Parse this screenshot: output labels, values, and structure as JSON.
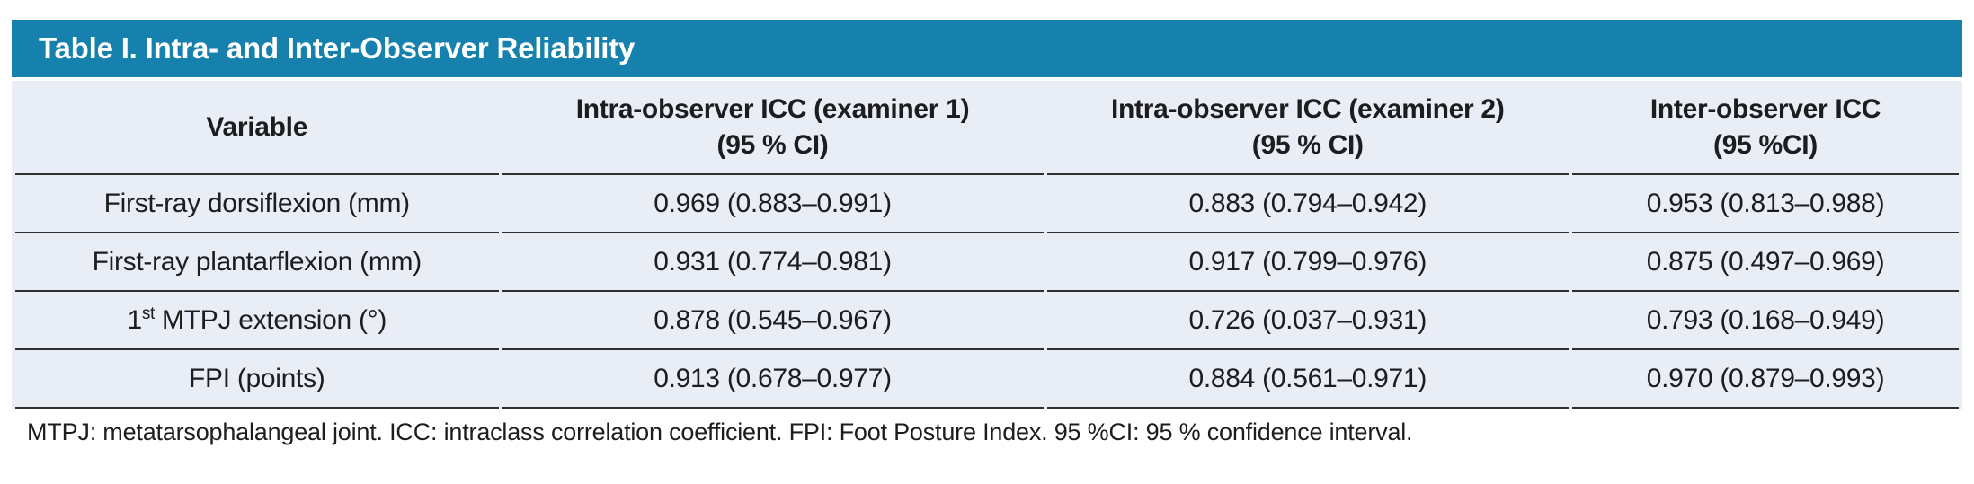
{
  "colors": {
    "title_bar_bg": "#1681ad",
    "title_text": "#ffffff",
    "body_bg": "#e9edf6",
    "divider": "#2f2f2f",
    "text": "#1d1d1f"
  },
  "table": {
    "title": "Table I. Intra- and Inter-Observer Reliability",
    "columns": [
      {
        "label": "Variable",
        "sub": ""
      },
      {
        "label": "Intra-observer ICC (examiner 1)",
        "sub": "(95 % CI)"
      },
      {
        "label": "Intra-observer ICC (examiner 2)",
        "sub": "(95 % CI)"
      },
      {
        "label": "Inter-observer ICC",
        "sub": "(95 %CI)"
      }
    ],
    "rows": [
      {
        "variable": {
          "pre": "First-ray dorsiflexion (mm)",
          "sup": "",
          "post": ""
        },
        "values": [
          "0.969 (0.883–0.991)",
          "0.883 (0.794–0.942)",
          "0.953 (0.813–0.988)"
        ]
      },
      {
        "variable": {
          "pre": "First-ray plantarflexion (mm)",
          "sup": "",
          "post": ""
        },
        "values": [
          "0.931 (0.774–0.981)",
          "0.917 (0.799–0.976)",
          "0.875 (0.497–0.969)"
        ]
      },
      {
        "variable": {
          "pre": "1",
          "sup": "st",
          "post": " MTPJ extension (°)"
        },
        "values": [
          "0.878 (0.545–0.967)",
          "0.726 (0.037–0.931)",
          "0.793 (0.168–0.949)"
        ]
      },
      {
        "variable": {
          "pre": "FPI (points)",
          "sup": "",
          "post": ""
        },
        "values": [
          "0.913 (0.678–0.977)",
          "0.884 (0.561–0.971)",
          "0.970 (0.879–0.993)"
        ]
      }
    ],
    "footnote": "MTPJ: metatarsophalangeal joint. ICC: intraclass correlation coefficient. FPI: Foot Posture Index. 95 %CI: 95 % confidence interval."
  },
  "chart_data": {
    "type": "table",
    "title": "Table I. Intra- and Inter-Observer Reliability",
    "columns": [
      "Variable",
      "Intra-observer ICC (examiner 1) (95 % CI)",
      "Intra-observer ICC (examiner 2) (95 % CI)",
      "Inter-observer ICC (95 %CI)"
    ],
    "rows": [
      [
        "First-ray dorsiflexion (mm)",
        "0.969 (0.883–0.991)",
        "0.883 (0.794–0.942)",
        "0.953 (0.813–0.988)"
      ],
      [
        "First-ray plantarflexion (mm)",
        "0.931 (0.774–0.981)",
        "0.917 (0.799–0.976)",
        "0.875 (0.497–0.969)"
      ],
      [
        "1st MTPJ extension (°)",
        "0.878 (0.545–0.967)",
        "0.726 (0.037–0.931)",
        "0.793 (0.168–0.949)"
      ],
      [
        "FPI (points)",
        "0.913 (0.678–0.977)",
        "0.884 (0.561–0.971)",
        "0.970 (0.879–0.993)"
      ]
    ]
  }
}
